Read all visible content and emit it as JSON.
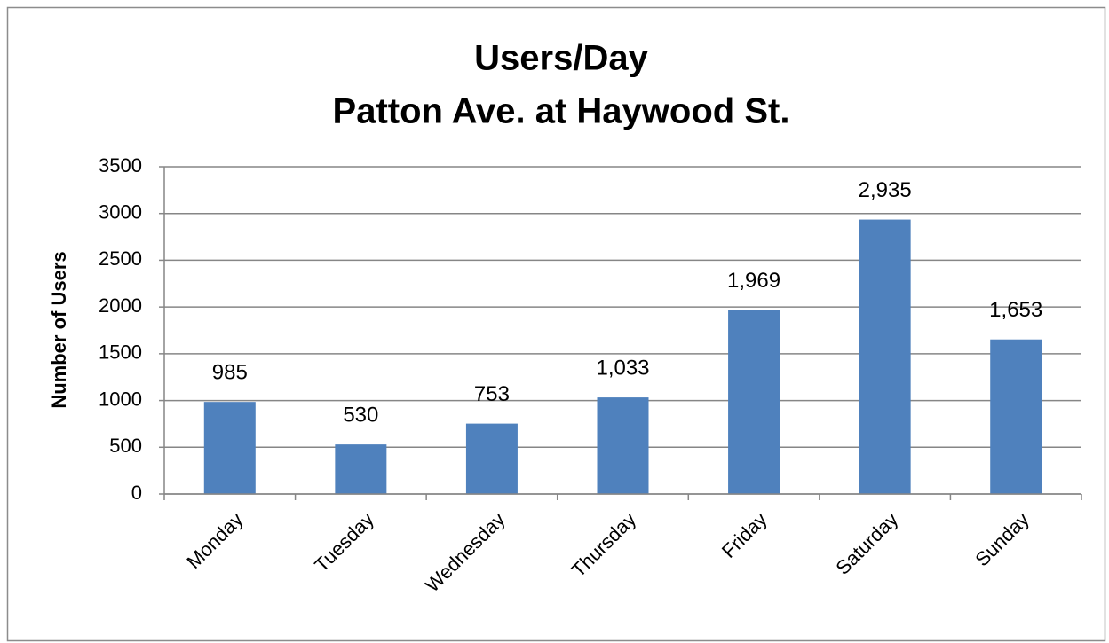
{
  "chart_data": {
    "type": "bar",
    "title": "Users/Day",
    "subtitle": "Patton Ave. at Haywood St.",
    "y_label": "Number of Users",
    "categories": [
      "Monday",
      "Tuesday",
      "Wednesday",
      "Thursday",
      "Friday",
      "Saturday",
      "Sunday"
    ],
    "values": [
      985,
      530,
      753,
      1033,
      1969,
      2935,
      1653
    ],
    "value_labels": [
      "985",
      "530",
      "753",
      "1,033",
      "1,969",
      "2,935",
      "1,653"
    ],
    "color": "#4f81bd",
    "ylim": [
      0,
      3500
    ],
    "yticks": [
      0,
      500,
      1000,
      1500,
      2000,
      2500,
      3000,
      3500
    ],
    "grid": true
  }
}
